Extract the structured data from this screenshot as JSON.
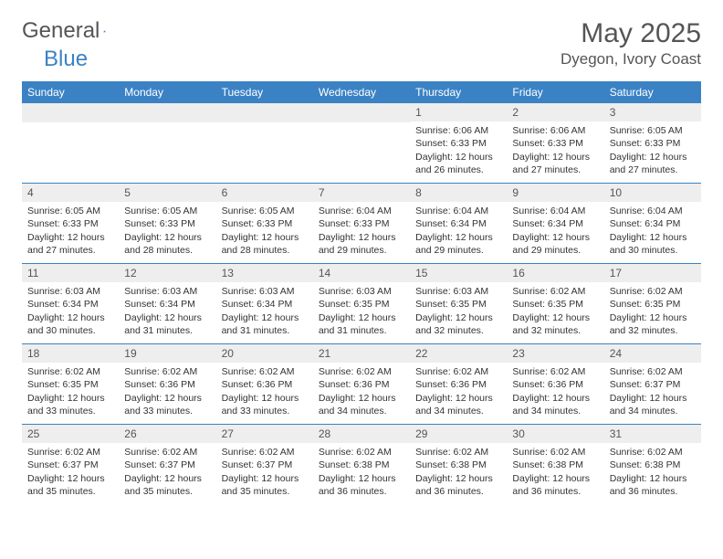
{
  "logo": {
    "text1": "General",
    "text2": "Blue"
  },
  "title": "May 2025",
  "location": "Dyegon, Ivory Coast",
  "colors": {
    "header_bg": "#3b82c4",
    "header_text": "#ffffff",
    "daynum_bg": "#eeeeee",
    "border": "#3b82c4",
    "text": "#333333"
  },
  "weekdays": [
    "Sunday",
    "Monday",
    "Tuesday",
    "Wednesday",
    "Thursday",
    "Friday",
    "Saturday"
  ],
  "weeks": [
    [
      {
        "num": "",
        "sunrise": "",
        "sunset": "",
        "daylight": ""
      },
      {
        "num": "",
        "sunrise": "",
        "sunset": "",
        "daylight": ""
      },
      {
        "num": "",
        "sunrise": "",
        "sunset": "",
        "daylight": ""
      },
      {
        "num": "",
        "sunrise": "",
        "sunset": "",
        "daylight": ""
      },
      {
        "num": "1",
        "sunrise": "Sunrise: 6:06 AM",
        "sunset": "Sunset: 6:33 PM",
        "daylight": "Daylight: 12 hours and 26 minutes."
      },
      {
        "num": "2",
        "sunrise": "Sunrise: 6:06 AM",
        "sunset": "Sunset: 6:33 PM",
        "daylight": "Daylight: 12 hours and 27 minutes."
      },
      {
        "num": "3",
        "sunrise": "Sunrise: 6:05 AM",
        "sunset": "Sunset: 6:33 PM",
        "daylight": "Daylight: 12 hours and 27 minutes."
      }
    ],
    [
      {
        "num": "4",
        "sunrise": "Sunrise: 6:05 AM",
        "sunset": "Sunset: 6:33 PM",
        "daylight": "Daylight: 12 hours and 27 minutes."
      },
      {
        "num": "5",
        "sunrise": "Sunrise: 6:05 AM",
        "sunset": "Sunset: 6:33 PM",
        "daylight": "Daylight: 12 hours and 28 minutes."
      },
      {
        "num": "6",
        "sunrise": "Sunrise: 6:05 AM",
        "sunset": "Sunset: 6:33 PM",
        "daylight": "Daylight: 12 hours and 28 minutes."
      },
      {
        "num": "7",
        "sunrise": "Sunrise: 6:04 AM",
        "sunset": "Sunset: 6:33 PM",
        "daylight": "Daylight: 12 hours and 29 minutes."
      },
      {
        "num": "8",
        "sunrise": "Sunrise: 6:04 AM",
        "sunset": "Sunset: 6:34 PM",
        "daylight": "Daylight: 12 hours and 29 minutes."
      },
      {
        "num": "9",
        "sunrise": "Sunrise: 6:04 AM",
        "sunset": "Sunset: 6:34 PM",
        "daylight": "Daylight: 12 hours and 29 minutes."
      },
      {
        "num": "10",
        "sunrise": "Sunrise: 6:04 AM",
        "sunset": "Sunset: 6:34 PM",
        "daylight": "Daylight: 12 hours and 30 minutes."
      }
    ],
    [
      {
        "num": "11",
        "sunrise": "Sunrise: 6:03 AM",
        "sunset": "Sunset: 6:34 PM",
        "daylight": "Daylight: 12 hours and 30 minutes."
      },
      {
        "num": "12",
        "sunrise": "Sunrise: 6:03 AM",
        "sunset": "Sunset: 6:34 PM",
        "daylight": "Daylight: 12 hours and 31 minutes."
      },
      {
        "num": "13",
        "sunrise": "Sunrise: 6:03 AM",
        "sunset": "Sunset: 6:34 PM",
        "daylight": "Daylight: 12 hours and 31 minutes."
      },
      {
        "num": "14",
        "sunrise": "Sunrise: 6:03 AM",
        "sunset": "Sunset: 6:35 PM",
        "daylight": "Daylight: 12 hours and 31 minutes."
      },
      {
        "num": "15",
        "sunrise": "Sunrise: 6:03 AM",
        "sunset": "Sunset: 6:35 PM",
        "daylight": "Daylight: 12 hours and 32 minutes."
      },
      {
        "num": "16",
        "sunrise": "Sunrise: 6:02 AM",
        "sunset": "Sunset: 6:35 PM",
        "daylight": "Daylight: 12 hours and 32 minutes."
      },
      {
        "num": "17",
        "sunrise": "Sunrise: 6:02 AM",
        "sunset": "Sunset: 6:35 PM",
        "daylight": "Daylight: 12 hours and 32 minutes."
      }
    ],
    [
      {
        "num": "18",
        "sunrise": "Sunrise: 6:02 AM",
        "sunset": "Sunset: 6:35 PM",
        "daylight": "Daylight: 12 hours and 33 minutes."
      },
      {
        "num": "19",
        "sunrise": "Sunrise: 6:02 AM",
        "sunset": "Sunset: 6:36 PM",
        "daylight": "Daylight: 12 hours and 33 minutes."
      },
      {
        "num": "20",
        "sunrise": "Sunrise: 6:02 AM",
        "sunset": "Sunset: 6:36 PM",
        "daylight": "Daylight: 12 hours and 33 minutes."
      },
      {
        "num": "21",
        "sunrise": "Sunrise: 6:02 AM",
        "sunset": "Sunset: 6:36 PM",
        "daylight": "Daylight: 12 hours and 34 minutes."
      },
      {
        "num": "22",
        "sunrise": "Sunrise: 6:02 AM",
        "sunset": "Sunset: 6:36 PM",
        "daylight": "Daylight: 12 hours and 34 minutes."
      },
      {
        "num": "23",
        "sunrise": "Sunrise: 6:02 AM",
        "sunset": "Sunset: 6:36 PM",
        "daylight": "Daylight: 12 hours and 34 minutes."
      },
      {
        "num": "24",
        "sunrise": "Sunrise: 6:02 AM",
        "sunset": "Sunset: 6:37 PM",
        "daylight": "Daylight: 12 hours and 34 minutes."
      }
    ],
    [
      {
        "num": "25",
        "sunrise": "Sunrise: 6:02 AM",
        "sunset": "Sunset: 6:37 PM",
        "daylight": "Daylight: 12 hours and 35 minutes."
      },
      {
        "num": "26",
        "sunrise": "Sunrise: 6:02 AM",
        "sunset": "Sunset: 6:37 PM",
        "daylight": "Daylight: 12 hours and 35 minutes."
      },
      {
        "num": "27",
        "sunrise": "Sunrise: 6:02 AM",
        "sunset": "Sunset: 6:37 PM",
        "daylight": "Daylight: 12 hours and 35 minutes."
      },
      {
        "num": "28",
        "sunrise": "Sunrise: 6:02 AM",
        "sunset": "Sunset: 6:38 PM",
        "daylight": "Daylight: 12 hours and 36 minutes."
      },
      {
        "num": "29",
        "sunrise": "Sunrise: 6:02 AM",
        "sunset": "Sunset: 6:38 PM",
        "daylight": "Daylight: 12 hours and 36 minutes."
      },
      {
        "num": "30",
        "sunrise": "Sunrise: 6:02 AM",
        "sunset": "Sunset: 6:38 PM",
        "daylight": "Daylight: 12 hours and 36 minutes."
      },
      {
        "num": "31",
        "sunrise": "Sunrise: 6:02 AM",
        "sunset": "Sunset: 6:38 PM",
        "daylight": "Daylight: 12 hours and 36 minutes."
      }
    ]
  ]
}
